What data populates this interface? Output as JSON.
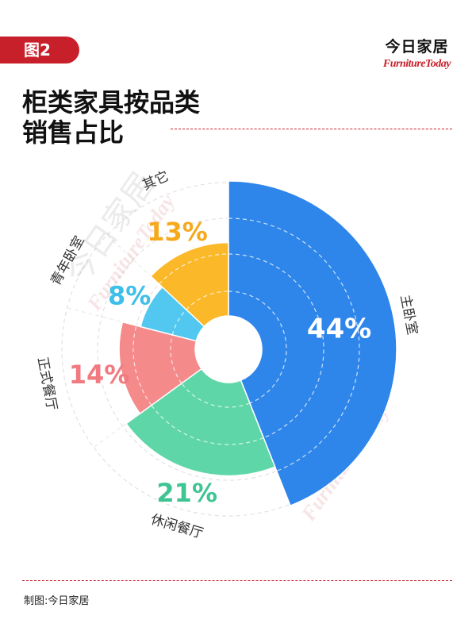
{
  "header": {
    "badge": "图2",
    "title_line1": "柜类家具按品类",
    "title_line2": "销售占比",
    "brand_cn": "今日家居",
    "brand_en": "FurnitureToday"
  },
  "footer": {
    "credit": "制图:今日家居"
  },
  "watermark": {
    "cn": "今日家居",
    "en": "FurnitureToday"
  },
  "colors": {
    "accent": "#c8202b",
    "主卧室": "#2f86ea",
    "休闲餐厅": "#5fd6a8",
    "正式餐厅": "#f58a8b",
    "青年卧室": "#52c7ef",
    "其它": "#fbb829"
  },
  "chart_data": {
    "type": "pie",
    "variant": "rose",
    "unit": "%",
    "categories": [
      "主卧室",
      "休闲餐厅",
      "正式餐厅",
      "青年卧室",
      "其它"
    ],
    "values": [
      44,
      21,
      14,
      8,
      13
    ],
    "labels": [
      "44%",
      "21%",
      "14%",
      "8%",
      "13%"
    ],
    "colors": [
      "#2f86ea",
      "#5fd6a8",
      "#f58a8b",
      "#52c7ef",
      "#fbb829"
    ],
    "label_colors": [
      "#ffffff",
      "#3fc593",
      "#f07a80",
      "#3ebfe9",
      "#f7a91c"
    ]
  }
}
